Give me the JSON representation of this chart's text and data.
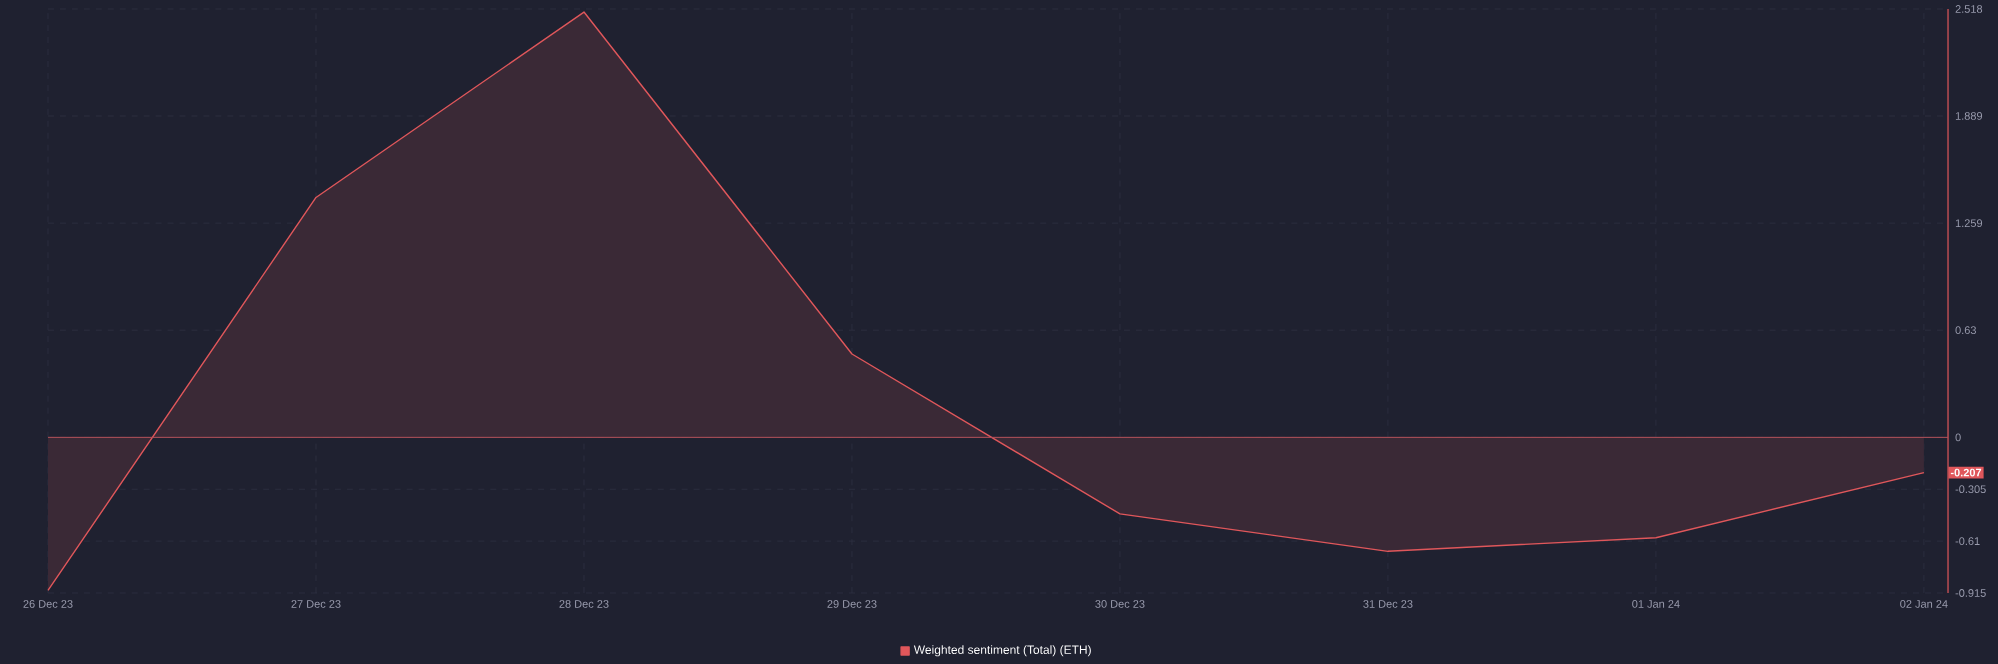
{
  "chart_data": {
    "type": "area",
    "categories": [
      "26 Dec 23",
      "27 Dec 23",
      "28 Dec 23",
      "29 Dec 23",
      "30 Dec 23",
      "31 Dec 23",
      "01 Jan 24",
      "02 Jan 24"
    ],
    "series": [
      {
        "name": "Weighted sentiment (Total) (ETH)",
        "color": "#e0575b",
        "values": [
          -0.9,
          1.41,
          2.5,
          0.49,
          -0.45,
          -0.67,
          -0.59,
          -0.207
        ]
      }
    ],
    "ylim": [
      -0.915,
      2.518
    ],
    "yticks": [
      2.518,
      1.889,
      1.259,
      0.63,
      0,
      -0.305,
      -0.61,
      -0.915
    ],
    "grid": true,
    "legend": "bottom",
    "ref_lines": [
      {
        "axis": "y",
        "value": 0,
        "color": "#b5525a"
      }
    ],
    "annotations": [
      {
        "text": "-0.207",
        "x": "02 Jan 24",
        "y": -0.207
      }
    ]
  }
}
